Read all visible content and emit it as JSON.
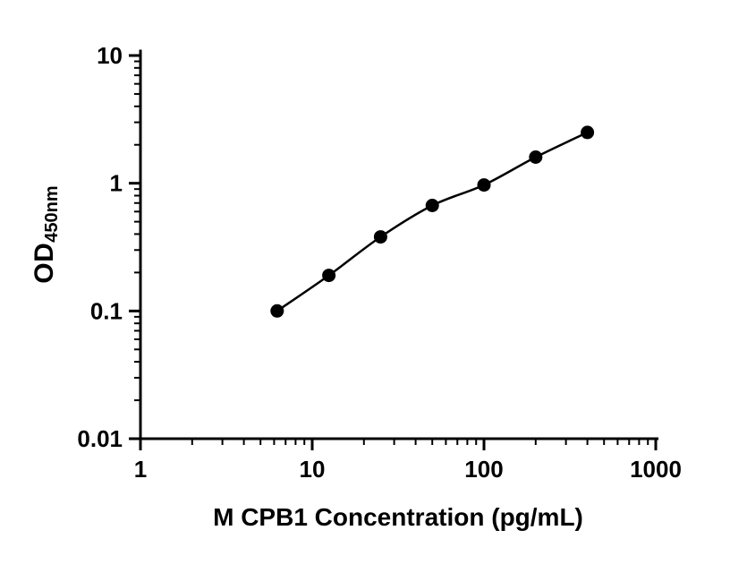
{
  "figure": {
    "background": "#ffffff"
  },
  "chart_data": {
    "type": "scatter",
    "title": "",
    "xlabel": "M CPB1 Concentration (pg/mL)",
    "ylabel": "OD",
    "ylabel_subscript": "450nm",
    "x": [
      6.25,
      12.5,
      25,
      50,
      100,
      200,
      400
    ],
    "y": [
      0.1,
      0.19,
      0.38,
      0.67,
      0.97,
      1.6,
      2.5
    ],
    "x_scale": "log",
    "y_scale": "log",
    "xlim": [
      1,
      1000
    ],
    "ylim": [
      0.01,
      10
    ],
    "x_ticks": [
      "1",
      "10",
      "100",
      "1000"
    ],
    "y_ticks": [
      "0.01",
      "0.1",
      "1",
      "10"
    ],
    "grid": false,
    "legend": "none",
    "marker": "filled-circle",
    "marker_color": "#000000",
    "line_color": "#000000",
    "axis_color": "#000000",
    "curve": "smooth fit through points"
  }
}
